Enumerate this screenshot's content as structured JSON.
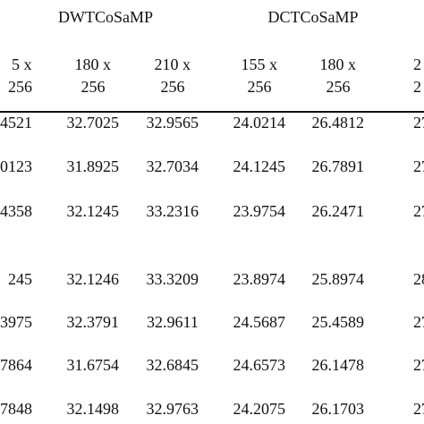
{
  "header": {
    "groups": [
      "DWTCoSaMP",
      "DCTCoSaMP"
    ],
    "columns": [
      [
        "5 x",
        "256"
      ],
      [
        "180 x",
        "256"
      ],
      [
        "210 x",
        "256"
      ],
      [
        "155 x",
        "256"
      ],
      [
        "180 x",
        "256"
      ],
      [
        "2",
        "2"
      ]
    ]
  },
  "table": {
    "rows": [
      [
        "4521",
        "32.7025",
        "32.9565",
        "24.0214",
        "26.4812",
        "27"
      ],
      [
        "0123",
        "31.8925",
        "32.7034",
        "24.1245",
        "26.7891",
        "27"
      ],
      [
        "4358",
        "32.1245",
        "33.2316",
        "23.9754",
        "26.2471",
        "27"
      ],
      [
        "245",
        "32.1246",
        "33.3209",
        "23.8974",
        "25.8974",
        "28"
      ],
      [
        "3975",
        "32.3791",
        "32.9611",
        "24.5687",
        "25.4589",
        "27"
      ],
      [
        "7864",
        "31.6754",
        "32.6845",
        "24.6573",
        "26.1478",
        "27"
      ],
      [
        "7848",
        "32.1498",
        "32.9763",
        "24.2075",
        "26.1703",
        "27"
      ]
    ]
  }
}
